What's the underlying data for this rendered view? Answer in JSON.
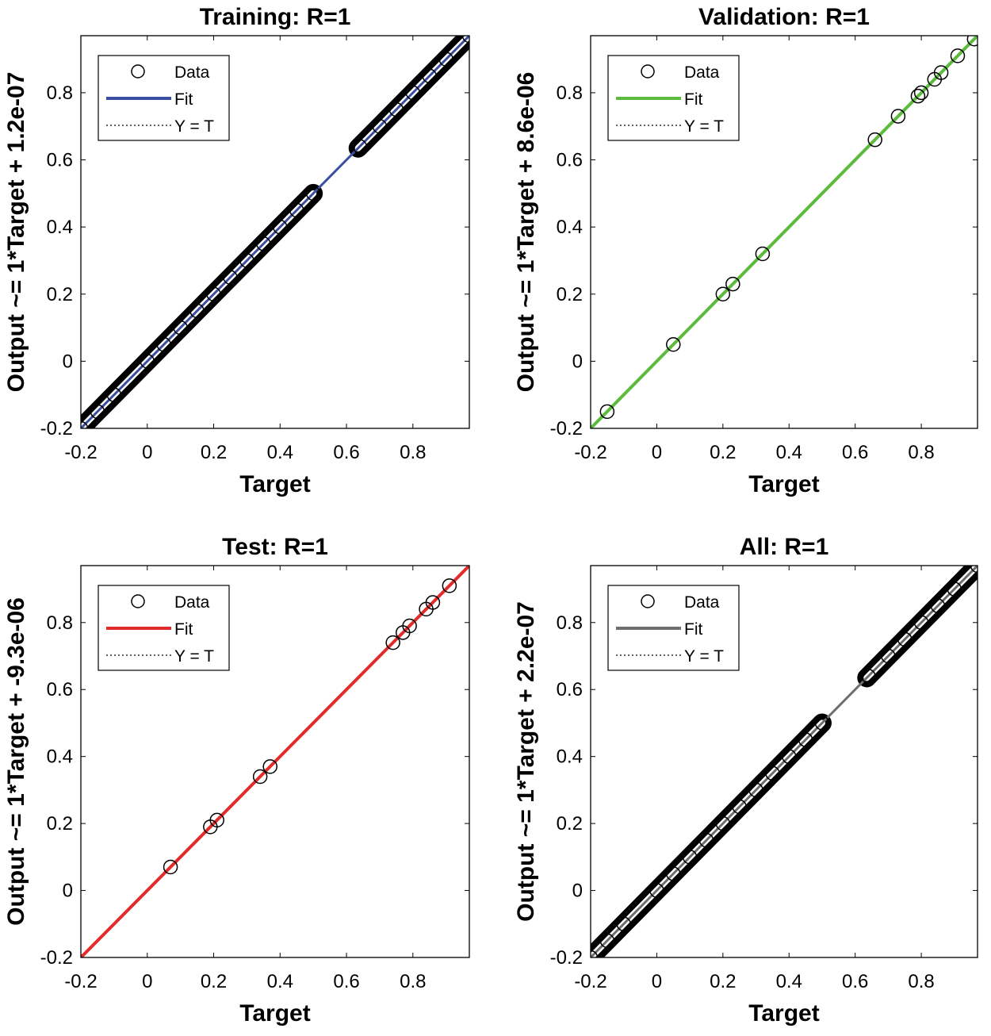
{
  "chart_data": [
    {
      "type": "scatter",
      "title": "Training: R=1",
      "xlabel": "Target",
      "ylabel": "Output ~= 1*Target + 1.2e-07",
      "xlim": [
        -0.2,
        0.97
      ],
      "ylim": [
        -0.2,
        0.97
      ],
      "xticks": [
        "-0.2",
        "0",
        "0.2",
        "0.4",
        "0.6",
        "0.8"
      ],
      "yticks": [
        "-0.2",
        "0",
        "0.2",
        "0.4",
        "0.6",
        "0.8"
      ],
      "fit_color": "#3a4fa0",
      "fit": {
        "slope": 1,
        "intercept": 1.2e-07
      },
      "legend": {
        "placement": "top-left",
        "entries": [
          "Data",
          "Fit",
          "Y = T"
        ]
      },
      "dense_ranges": [
        [
          -0.2,
          0.5
        ],
        [
          0.635,
          0.97
        ]
      ],
      "series": [
        {
          "name": "Data",
          "x": [
            -0.2,
            -0.15,
            -0.1,
            0.0,
            0.05,
            0.1,
            0.15,
            0.2,
            0.25,
            0.3,
            0.35,
            0.4,
            0.45,
            0.5,
            0.64,
            0.7,
            0.75,
            0.8,
            0.85,
            0.9,
            0.97
          ],
          "y": [
            -0.2,
            -0.15,
            -0.1,
            0.0,
            0.05,
            0.1,
            0.15,
            0.2,
            0.25,
            0.3,
            0.35,
            0.4,
            0.45,
            0.5,
            0.64,
            0.7,
            0.75,
            0.8,
            0.85,
            0.9,
            0.97
          ]
        }
      ]
    },
    {
      "type": "scatter",
      "title": "Validation: R=1",
      "xlabel": "Target",
      "ylabel": "Output ~= 1*Target + 8.6e-06",
      "xlim": [
        -0.2,
        0.97
      ],
      "ylim": [
        -0.2,
        0.97
      ],
      "xticks": [
        "-0.2",
        "0",
        "0.2",
        "0.4",
        "0.6",
        "0.8"
      ],
      "yticks": [
        "-0.2",
        "0",
        "0.2",
        "0.4",
        "0.6",
        "0.8"
      ],
      "fit_color": "#5cba3c",
      "fit": {
        "slope": 1,
        "intercept": 8.6e-06
      },
      "legend": {
        "placement": "top-left",
        "entries": [
          "Data",
          "Fit",
          "Y = T"
        ]
      },
      "dense_ranges": [],
      "series": [
        {
          "name": "Data",
          "x": [
            -0.15,
            0.05,
            0.2,
            0.23,
            0.32,
            0.66,
            0.73,
            0.79,
            0.8,
            0.84,
            0.86,
            0.91,
            0.96
          ],
          "y": [
            -0.15,
            0.05,
            0.2,
            0.23,
            0.32,
            0.66,
            0.73,
            0.79,
            0.8,
            0.84,
            0.86,
            0.91,
            0.96
          ]
        }
      ]
    },
    {
      "type": "scatter",
      "title": "Test: R=1",
      "xlabel": "Target",
      "ylabel": "Output ~= 1*Target + -9.3e-06",
      "xlim": [
        -0.2,
        0.97
      ],
      "ylim": [
        -0.2,
        0.97
      ],
      "xticks": [
        "-0.2",
        "0",
        "0.2",
        "0.4",
        "0.6",
        "0.8"
      ],
      "yticks": [
        "-0.2",
        "0",
        "0.2",
        "0.4",
        "0.6",
        "0.8"
      ],
      "fit_color": "#e32b2b",
      "fit": {
        "slope": 1,
        "intercept": -9.3e-06
      },
      "legend": {
        "placement": "top-left",
        "entries": [
          "Data",
          "Fit",
          "Y = T"
        ]
      },
      "dense_ranges": [],
      "series": [
        {
          "name": "Data",
          "x": [
            0.07,
            0.19,
            0.21,
            0.34,
            0.37,
            0.74,
            0.77,
            0.79,
            0.84,
            0.86,
            0.91
          ],
          "y": [
            0.07,
            0.19,
            0.21,
            0.34,
            0.37,
            0.74,
            0.77,
            0.79,
            0.84,
            0.86,
            0.91
          ]
        }
      ]
    },
    {
      "type": "scatter",
      "title": "All: R=1",
      "xlabel": "Target",
      "ylabel": "Output ~= 1*Target + 2.2e-07",
      "xlim": [
        -0.2,
        0.97
      ],
      "ylim": [
        -0.2,
        0.97
      ],
      "xticks": [
        "-0.2",
        "0",
        "0.2",
        "0.4",
        "0.6",
        "0.8"
      ],
      "yticks": [
        "-0.2",
        "0",
        "0.2",
        "0.4",
        "0.6",
        "0.8"
      ],
      "fit_color": "#6e6e6e",
      "fit": {
        "slope": 1,
        "intercept": 2.2e-07
      },
      "legend": {
        "placement": "top-left",
        "entries": [
          "Data",
          "Fit",
          "Y = T"
        ]
      },
      "dense_ranges": [
        [
          -0.2,
          0.5
        ],
        [
          0.635,
          0.97
        ]
      ],
      "series": [
        {
          "name": "Data",
          "x": [
            -0.2,
            -0.15,
            -0.1,
            0.0,
            0.05,
            0.1,
            0.15,
            0.2,
            0.25,
            0.3,
            0.35,
            0.4,
            0.45,
            0.5,
            0.64,
            0.7,
            0.75,
            0.8,
            0.85,
            0.9,
            0.97
          ],
          "y": [
            -0.2,
            -0.15,
            -0.1,
            0.0,
            0.05,
            0.1,
            0.15,
            0.2,
            0.25,
            0.3,
            0.35,
            0.4,
            0.45,
            0.5,
            0.64,
            0.7,
            0.75,
            0.8,
            0.85,
            0.9,
            0.97
          ]
        }
      ]
    }
  ]
}
